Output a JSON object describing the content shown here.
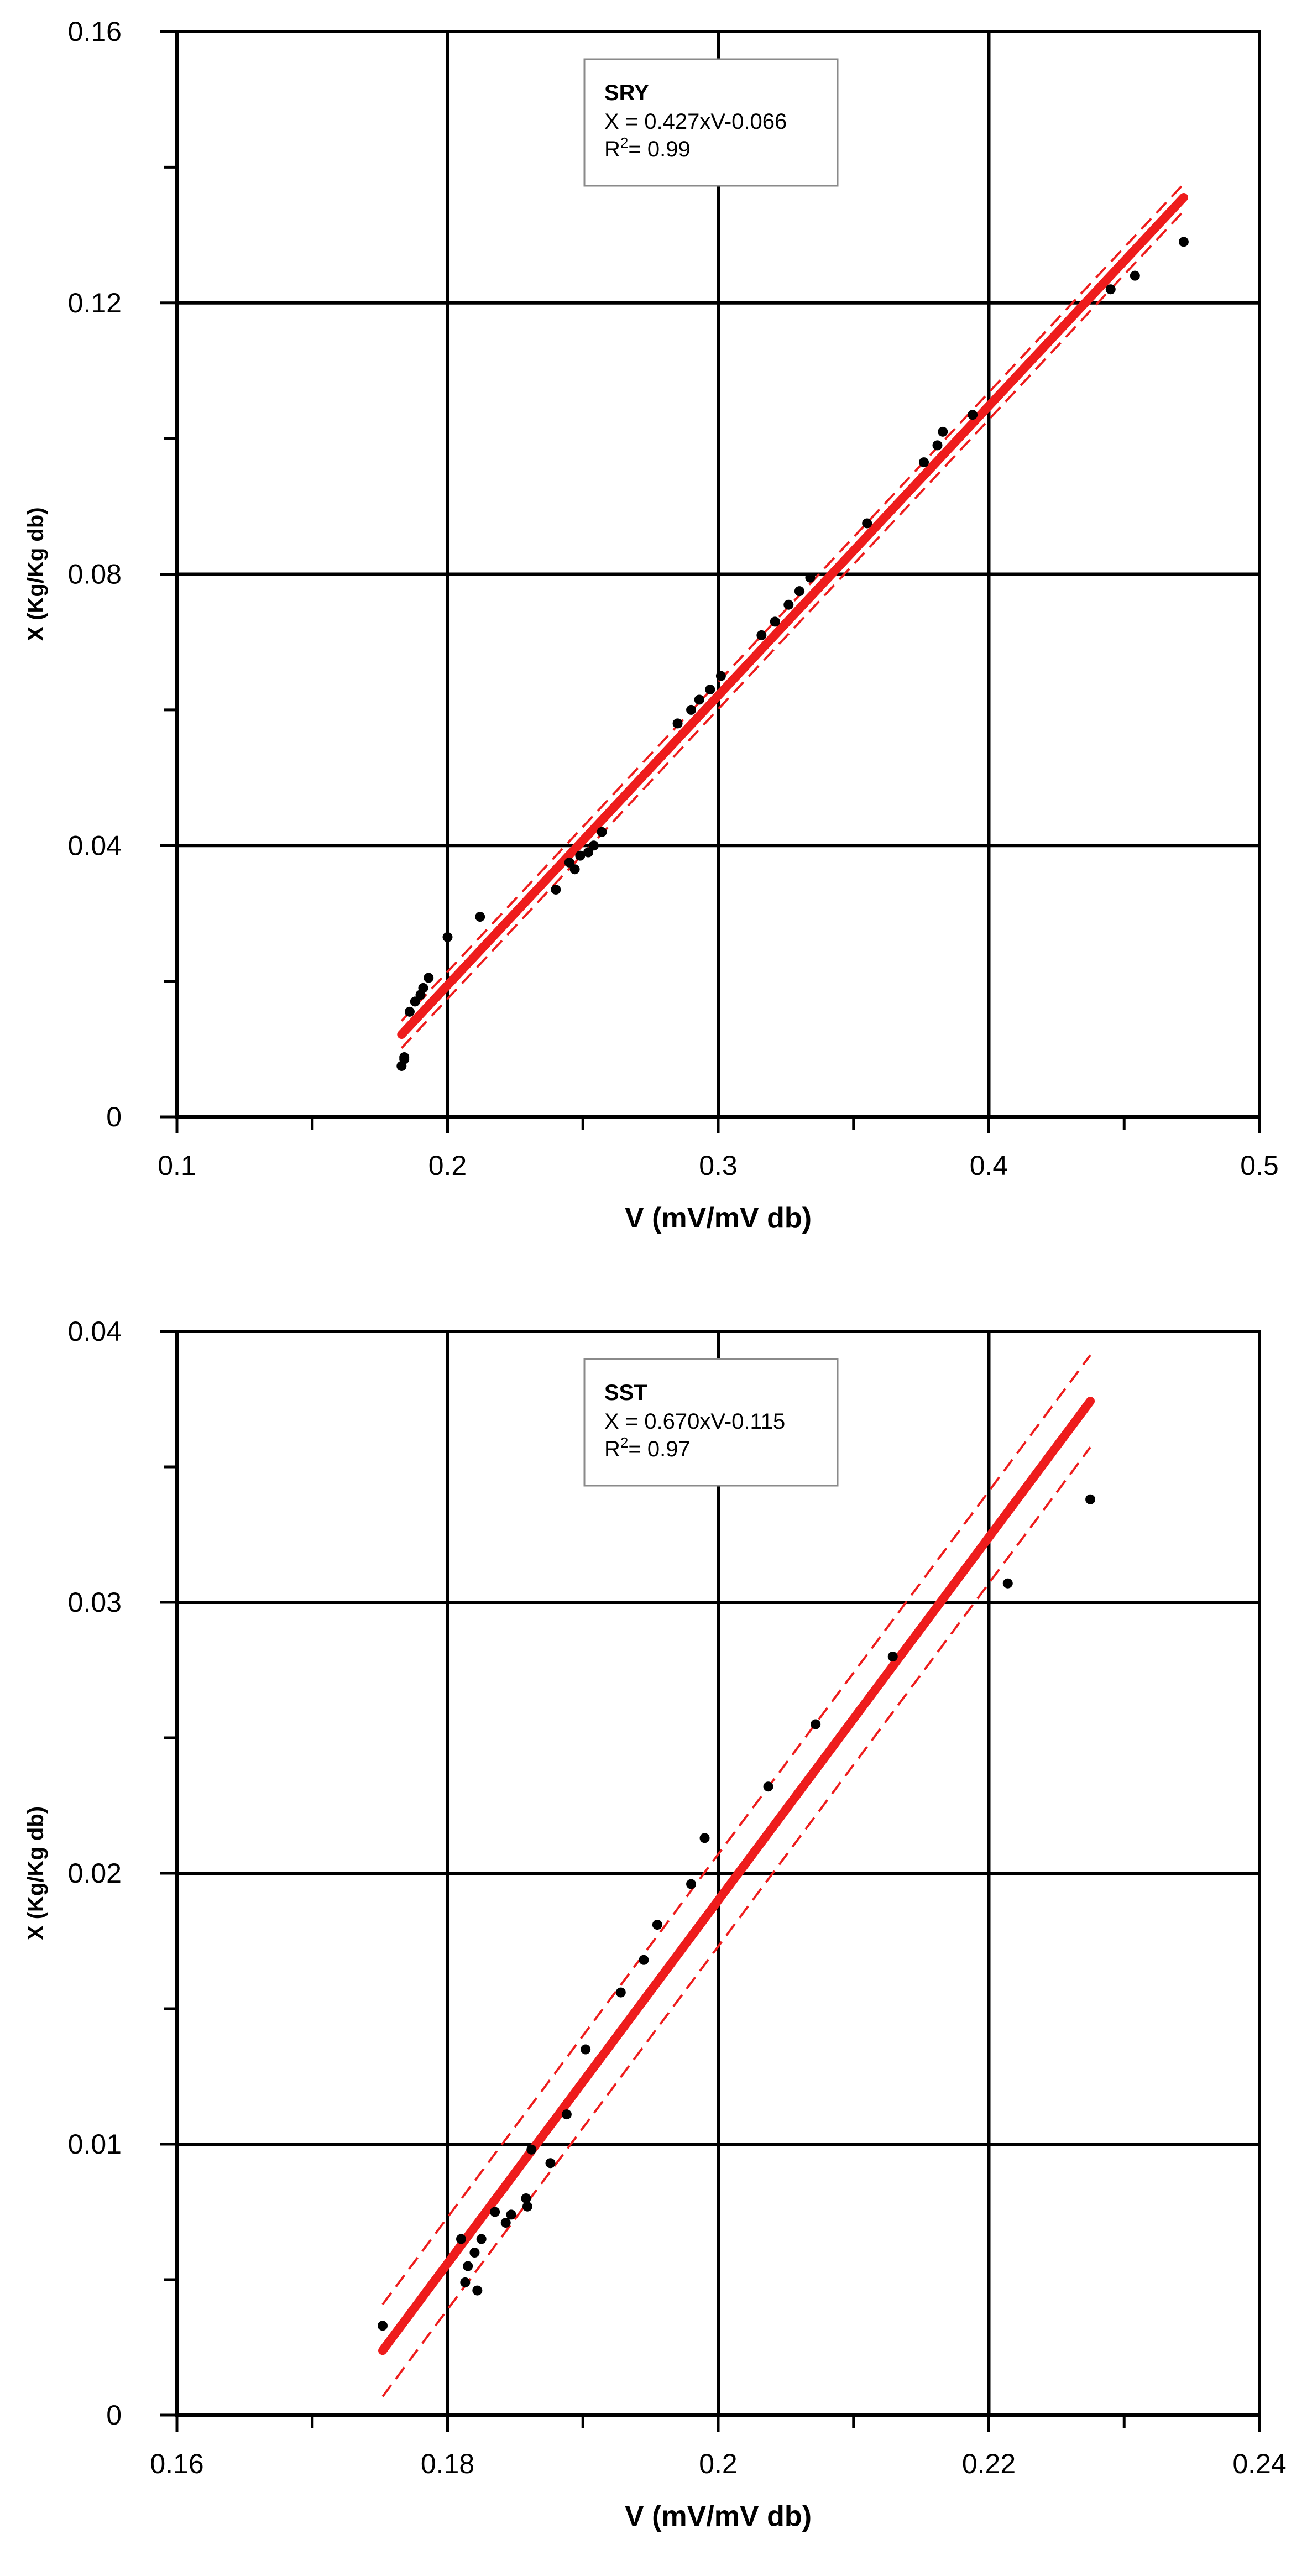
{
  "chart_data": [
    {
      "type": "scatter",
      "xlabel": "V (mV/mV db)",
      "ylabel": "X (Kg/Kg db)",
      "xlim": [
        0.1,
        0.5
      ],
      "ylim": [
        0,
        0.16
      ],
      "x_ticks": [
        "0.1",
        "0.2",
        "0.3",
        "0.4",
        "0.5"
      ],
      "y_ticks": [
        "0",
        "0.04",
        "0.08",
        "0.12",
        "0.16"
      ],
      "grid": true,
      "legend_position": "top-center",
      "annotation": {
        "title": "SRY",
        "equation": "X = 0.427xV-0.066",
        "r2_prefix": "R",
        "r2_sup": "2",
        "r2_value": "= 0.99"
      },
      "fit": {
        "slope": 0.427,
        "intercept": -0.066,
        "x_range": [
          0.183,
          0.472
        ],
        "band": 0.002
      },
      "colors": {
        "points": "#000000",
        "fit": "#ee1c1c",
        "grid": "#000000"
      },
      "series": [
        {
          "x": [
            0.183,
            0.184,
            0.184,
            0.186,
            0.188,
            0.19,
            0.191,
            0.193,
            0.2,
            0.212,
            0.24,
            0.245,
            0.247,
            0.249,
            0.252,
            0.254,
            0.257,
            0.285,
            0.29,
            0.293,
            0.297,
            0.301,
            0.316,
            0.321,
            0.326,
            0.33,
            0.334,
            0.355,
            0.376,
            0.381,
            0.383,
            0.394,
            0.445,
            0.454,
            0.472
          ],
          "y": [
            0.0075,
            0.0085,
            0.0088,
            0.0155,
            0.017,
            0.018,
            0.019,
            0.0205,
            0.0265,
            0.0295,
            0.0335,
            0.0375,
            0.0365,
            0.0385,
            0.039,
            0.04,
            0.042,
            0.058,
            0.06,
            0.0615,
            0.063,
            0.065,
            0.071,
            0.073,
            0.0755,
            0.0775,
            0.0795,
            0.0875,
            0.0965,
            0.099,
            0.101,
            0.1035,
            0.122,
            0.124,
            0.129
          ]
        }
      ]
    },
    {
      "type": "scatter",
      "xlabel": "V (mV/mV db)",
      "ylabel": "X (Kg/Kg db)",
      "xlim": [
        0.16,
        0.24
      ],
      "ylim": [
        0,
        0.04
      ],
      "x_ticks": [
        "0.16",
        "0.18",
        "0.2",
        "0.22",
        "0.24"
      ],
      "y_ticks": [
        "0",
        "0.01",
        "0.02",
        "0.03",
        "0.04"
      ],
      "grid": true,
      "legend_position": "top-center",
      "annotation": {
        "title": "SST",
        "equation": "X = 0.670xV-0.115",
        "r2_prefix": "R",
        "r2_sup": "2",
        "r2_value": "= 0.97"
      },
      "fit": {
        "slope": 0.67,
        "intercept": -0.115,
        "x_range": [
          0.1752,
          0.2275
        ],
        "band": 0.0017
      },
      "colors": {
        "points": "#000000",
        "fit": "#ee1c1c",
        "grid": "#000000"
      },
      "series": [
        {
          "x": [
            0.1752,
            0.181,
            0.1813,
            0.1815,
            0.182,
            0.1822,
            0.1825,
            0.1835,
            0.1843,
            0.1847,
            0.1858,
            0.1859,
            0.1862,
            0.1876,
            0.1888,
            0.1902,
            0.1928,
            0.1945,
            0.1955,
            0.198,
            0.199,
            0.2037,
            0.2072,
            0.2129,
            0.2214,
            0.2275
          ],
          "y": [
            0.0033,
            0.0065,
            0.0049,
            0.0055,
            0.006,
            0.0046,
            0.0065,
            0.0075,
            0.0071,
            0.0074,
            0.008,
            0.0077,
            0.0098,
            0.0093,
            0.0111,
            0.0135,
            0.0156,
            0.0168,
            0.0181,
            0.0196,
            0.0213,
            0.0232,
            0.0255,
            0.028,
            0.0307,
            0.0338
          ]
        }
      ]
    }
  ]
}
